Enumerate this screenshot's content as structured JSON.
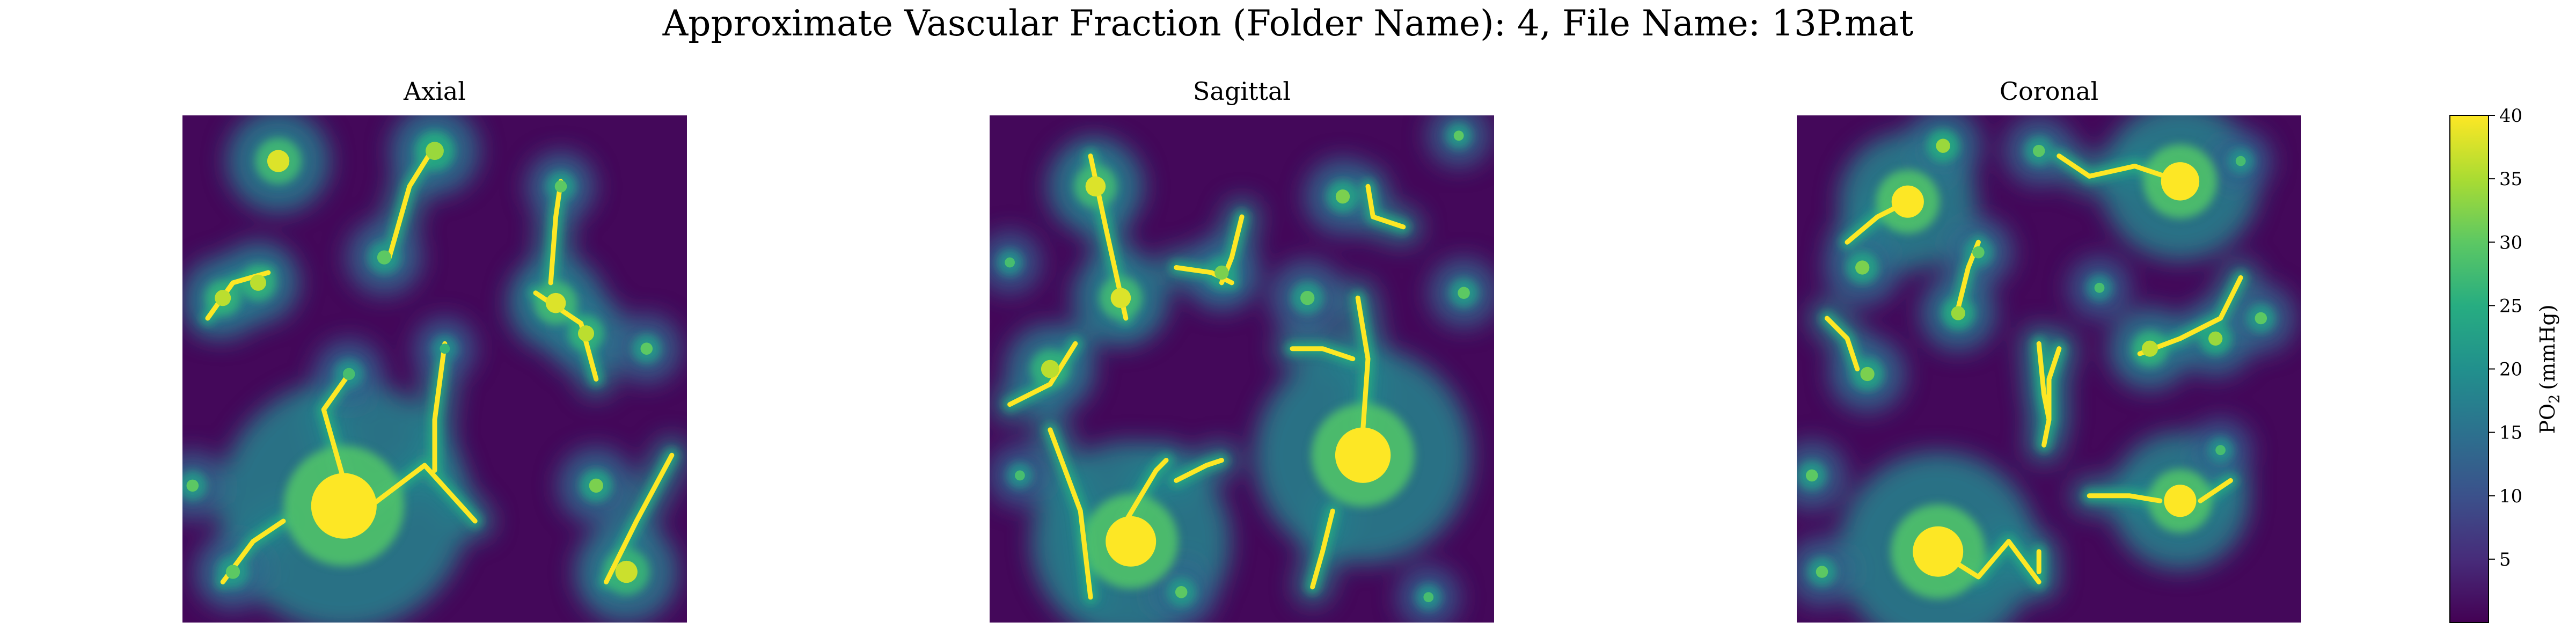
{
  "figure": {
    "suptitle": "Approximate Vascular Fraction (Folder Name): 4, File Name: 13P.mat"
  },
  "colors": {
    "colormap": "viridis",
    "viridis_stops": [
      "#440154",
      "#472c7a",
      "#3b518b",
      "#2c718e",
      "#21908d",
      "#27ad81",
      "#5cc863",
      "#aadc32",
      "#fde725"
    ]
  },
  "chart_data": [
    {
      "type": "heatmap",
      "title": "Axial",
      "value_range": [
        0,
        40
      ],
      "blobs": [
        {
          "x": 0.32,
          "y": 0.77,
          "radius": 0.065,
          "value": 40
        },
        {
          "x": 0.19,
          "y": 0.09,
          "radius": 0.022,
          "value": 38
        },
        {
          "x": 0.5,
          "y": 0.07,
          "radius": 0.018,
          "value": 34
        },
        {
          "x": 0.4,
          "y": 0.28,
          "radius": 0.014,
          "value": 30
        },
        {
          "x": 0.08,
          "y": 0.36,
          "radius": 0.016,
          "value": 36
        },
        {
          "x": 0.15,
          "y": 0.33,
          "radius": 0.016,
          "value": 36
        },
        {
          "x": 0.74,
          "y": 0.37,
          "radius": 0.02,
          "value": 38
        },
        {
          "x": 0.8,
          "y": 0.43,
          "radius": 0.016,
          "value": 36
        },
        {
          "x": 0.88,
          "y": 0.9,
          "radius": 0.022,
          "value": 37
        },
        {
          "x": 0.1,
          "y": 0.9,
          "radius": 0.014,
          "value": 30
        },
        {
          "x": 0.82,
          "y": 0.73,
          "radius": 0.014,
          "value": 32
        },
        {
          "x": 0.33,
          "y": 0.51,
          "radius": 0.012,
          "value": 28
        },
        {
          "x": 0.02,
          "y": 0.73,
          "radius": 0.012,
          "value": 30
        },
        {
          "x": 0.92,
          "y": 0.46,
          "radius": 0.012,
          "value": 30
        },
        {
          "x": 0.75,
          "y": 0.14,
          "radius": 0.012,
          "value": 30
        },
        {
          "x": 0.52,
          "y": 0.46,
          "radius": 0.01,
          "value": 26
        }
      ],
      "vessels": [
        [
          [
            0.05,
            0.4
          ],
          [
            0.1,
            0.33
          ],
          [
            0.17,
            0.31
          ]
        ],
        [
          [
            0.5,
            0.06
          ],
          [
            0.45,
            0.14
          ],
          [
            0.41,
            0.28
          ]
        ],
        [
          [
            0.32,
            0.72
          ],
          [
            0.28,
            0.58
          ],
          [
            0.33,
            0.51
          ]
        ],
        [
          [
            0.36,
            0.78
          ],
          [
            0.48,
            0.69
          ],
          [
            0.58,
            0.8
          ]
        ],
        [
          [
            0.7,
            0.35
          ],
          [
            0.79,
            0.41
          ],
          [
            0.82,
            0.52
          ]
        ],
        [
          [
            0.75,
            0.13
          ],
          [
            0.74,
            0.2
          ],
          [
            0.73,
            0.33
          ]
        ],
        [
          [
            0.84,
            0.92
          ],
          [
            0.9,
            0.8
          ],
          [
            0.97,
            0.67
          ]
        ],
        [
          [
            0.52,
            0.45
          ],
          [
            0.5,
            0.6
          ],
          [
            0.5,
            0.7
          ]
        ],
        [
          [
            0.08,
            0.92
          ],
          [
            0.14,
            0.84
          ],
          [
            0.2,
            0.8
          ]
        ]
      ]
    },
    {
      "type": "heatmap",
      "title": "Sagittal",
      "value_range": [
        0,
        40
      ],
      "blobs": [
        {
          "x": 0.28,
          "y": 0.84,
          "radius": 0.05,
          "value": 40
        },
        {
          "x": 0.74,
          "y": 0.67,
          "radius": 0.055,
          "value": 40
        },
        {
          "x": 0.21,
          "y": 0.14,
          "radius": 0.02,
          "value": 38
        },
        {
          "x": 0.26,
          "y": 0.36,
          "radius": 0.02,
          "value": 38
        },
        {
          "x": 0.12,
          "y": 0.5,
          "radius": 0.018,
          "value": 36
        },
        {
          "x": 0.7,
          "y": 0.16,
          "radius": 0.014,
          "value": 32
        },
        {
          "x": 0.46,
          "y": 0.31,
          "radius": 0.014,
          "value": 32
        },
        {
          "x": 0.63,
          "y": 0.36,
          "radius": 0.014,
          "value": 30
        },
        {
          "x": 0.93,
          "y": 0.04,
          "radius": 0.01,
          "value": 30
        },
        {
          "x": 0.04,
          "y": 0.29,
          "radius": 0.01,
          "value": 28
        },
        {
          "x": 0.94,
          "y": 0.35,
          "radius": 0.012,
          "value": 30
        },
        {
          "x": 0.38,
          "y": 0.94,
          "radius": 0.012,
          "value": 30
        },
        {
          "x": 0.06,
          "y": 0.71,
          "radius": 0.01,
          "value": 28
        },
        {
          "x": 0.87,
          "y": 0.95,
          "radius": 0.01,
          "value": 28
        }
      ],
      "vessels": [
        [
          [
            0.2,
            0.08
          ],
          [
            0.23,
            0.22
          ],
          [
            0.27,
            0.4
          ]
        ],
        [
          [
            0.04,
            0.57
          ],
          [
            0.12,
            0.53
          ],
          [
            0.17,
            0.45
          ]
        ],
        [
          [
            0.27,
            0.8
          ],
          [
            0.33,
            0.7
          ],
          [
            0.35,
            0.68
          ]
        ],
        [
          [
            0.74,
            0.62
          ],
          [
            0.75,
            0.48
          ],
          [
            0.73,
            0.36
          ]
        ],
        [
          [
            0.46,
            0.68
          ],
          [
            0.43,
            0.69
          ],
          [
            0.37,
            0.72
          ]
        ],
        [
          [
            0.68,
            0.78
          ],
          [
            0.66,
            0.86
          ],
          [
            0.64,
            0.93
          ]
        ],
        [
          [
            0.5,
            0.2
          ],
          [
            0.48,
            0.28
          ],
          [
            0.46,
            0.33
          ]
        ],
        [
          [
            0.6,
            0.46
          ],
          [
            0.66,
            0.46
          ],
          [
            0.72,
            0.48
          ]
        ],
        [
          [
            0.37,
            0.3
          ],
          [
            0.44,
            0.31
          ],
          [
            0.48,
            0.33
          ]
        ],
        [
          [
            0.75,
            0.14
          ],
          [
            0.76,
            0.2
          ],
          [
            0.82,
            0.22
          ]
        ],
        [
          [
            0.12,
            0.62
          ],
          [
            0.18,
            0.78
          ],
          [
            0.2,
            0.95
          ]
        ]
      ]
    },
    {
      "type": "heatmap",
      "title": "Coronal",
      "value_range": [
        0,
        40
      ],
      "blobs": [
        {
          "x": 0.28,
          "y": 0.86,
          "radius": 0.05,
          "value": 40
        },
        {
          "x": 0.76,
          "y": 0.76,
          "radius": 0.032,
          "value": 40
        },
        {
          "x": 0.22,
          "y": 0.17,
          "radius": 0.032,
          "value": 40
        },
        {
          "x": 0.76,
          "y": 0.13,
          "radius": 0.038,
          "value": 40
        },
        {
          "x": 0.29,
          "y": 0.06,
          "radius": 0.014,
          "value": 34
        },
        {
          "x": 0.32,
          "y": 0.39,
          "radius": 0.014,
          "value": 34
        },
        {
          "x": 0.13,
          "y": 0.3,
          "radius": 0.014,
          "value": 32
        },
        {
          "x": 0.14,
          "y": 0.51,
          "radius": 0.014,
          "value": 32
        },
        {
          "x": 0.7,
          "y": 0.46,
          "radius": 0.016,
          "value": 36
        },
        {
          "x": 0.83,
          "y": 0.44,
          "radius": 0.014,
          "value": 34
        },
        {
          "x": 0.92,
          "y": 0.4,
          "radius": 0.012,
          "value": 30
        },
        {
          "x": 0.48,
          "y": 0.07,
          "radius": 0.012,
          "value": 30
        },
        {
          "x": 0.88,
          "y": 0.09,
          "radius": 0.01,
          "value": 28
        },
        {
          "x": 0.03,
          "y": 0.71,
          "radius": 0.012,
          "value": 30
        },
        {
          "x": 0.05,
          "y": 0.9,
          "radius": 0.012,
          "value": 30
        },
        {
          "x": 0.36,
          "y": 0.27,
          "radius": 0.012,
          "value": 30
        },
        {
          "x": 0.6,
          "y": 0.34,
          "radius": 0.01,
          "value": 28
        },
        {
          "x": 0.84,
          "y": 0.66,
          "radius": 0.01,
          "value": 28
        }
      ],
      "vessels": [
        [
          [
            0.28,
            0.86
          ],
          [
            0.36,
            0.91
          ],
          [
            0.42,
            0.84
          ],
          [
            0.48,
            0.92
          ]
        ],
        [
          [
            0.48,
            0.9
          ],
          [
            0.48,
            0.86
          ]
        ],
        [
          [
            0.58,
            0.75
          ],
          [
            0.66,
            0.75
          ],
          [
            0.72,
            0.76
          ]
        ],
        [
          [
            0.8,
            0.76
          ],
          [
            0.86,
            0.72
          ]
        ],
        [
          [
            0.48,
            0.45
          ],
          [
            0.49,
            0.55
          ],
          [
            0.5,
            0.6
          ],
          [
            0.49,
            0.65
          ]
        ],
        [
          [
            0.22,
            0.17
          ],
          [
            0.16,
            0.2
          ],
          [
            0.1,
            0.25
          ]
        ],
        [
          [
            0.76,
            0.13
          ],
          [
            0.67,
            0.1
          ],
          [
            0.58,
            0.12
          ],
          [
            0.52,
            0.08
          ]
        ],
        [
          [
            0.68,
            0.47
          ],
          [
            0.76,
            0.44
          ],
          [
            0.84,
            0.4
          ],
          [
            0.88,
            0.32
          ]
        ],
        [
          [
            0.32,
            0.38
          ],
          [
            0.34,
            0.3
          ],
          [
            0.36,
            0.25
          ]
        ],
        [
          [
            0.52,
            0.46
          ],
          [
            0.5,
            0.52
          ],
          [
            0.5,
            0.6
          ]
        ],
        [
          [
            0.12,
            0.5
          ],
          [
            0.1,
            0.44
          ],
          [
            0.06,
            0.4
          ]
        ]
      ]
    }
  ],
  "colorbar": {
    "label_main": "PO",
    "label_sub": "2",
    "label_units": "(mmHg)",
    "ticks": [
      5,
      10,
      15,
      20,
      25,
      30,
      35,
      40
    ],
    "range": [
      0,
      40
    ]
  }
}
